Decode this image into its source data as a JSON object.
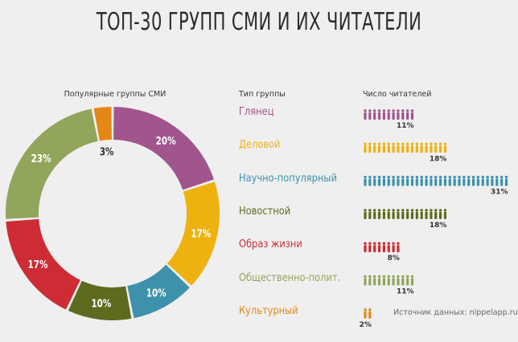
{
  "title": "ТОП-30 ГРУПП СМИ И ИХ ЧИТАТЕЛИ",
  "donut_label": "Популярные группы СМИ",
  "column_type": "Тип группы",
  "column_readers": "Число читателей",
  "source": "Источник данных: nippelapp.ru",
  "chart_data": [
    {
      "type": "pie",
      "title": "Популярные группы СМИ",
      "slices": [
        {
          "value": 20,
          "label": "20%",
          "color": "#a0558d"
        },
        {
          "value": 17,
          "label": "17%",
          "color": "#eeb210"
        },
        {
          "value": 10,
          "label": "10%",
          "color": "#3d91aa"
        },
        {
          "value": 10,
          "label": "10%",
          "color": "#5c6b1e"
        },
        {
          "value": 17,
          "label": "17%",
          "color": "#cd2c34"
        },
        {
          "value": 23,
          "label": "23%",
          "color": "#92a55c"
        },
        {
          "value": 3,
          "label": "3%",
          "color": "#e48716"
        }
      ]
    },
    {
      "type": "bar",
      "xlabel": "Тип группы",
      "ylabel": "Число читателей",
      "categories": [
        "Глянец",
        "Деловой",
        "Научно-популярный",
        "Новостной",
        "Образ жизни",
        "Общественно-полит.",
        "Культурный"
      ],
      "values": [
        11,
        18,
        31,
        18,
        8,
        11,
        2
      ],
      "value_labels": [
        "11%",
        "18%",
        "31%",
        "18%",
        "8%",
        "11%",
        "2%"
      ],
      "colors": [
        "#a0558d",
        "#eeb210",
        "#3d91aa",
        "#5c6b1e",
        "#cd2c34",
        "#92a55c",
        "#e48716"
      ]
    }
  ]
}
